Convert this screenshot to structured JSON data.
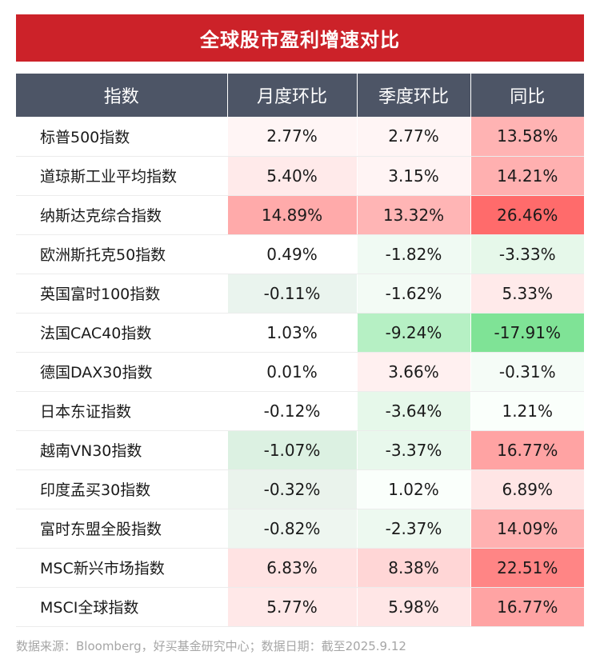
{
  "title": "全球股市盈利增速对比",
  "columns": [
    "指数",
    "月度环比",
    "季度环比",
    "同比"
  ],
  "rows": [
    {
      "name": "标普500指数",
      "cells": [
        {
          "v": "2.77%",
          "bg": "#fff5f5"
        },
        {
          "v": "2.77%",
          "bg": "#fff5f5"
        },
        {
          "v": "13.58%",
          "bg": "#ffb3b3"
        }
      ]
    },
    {
      "name": "道琼斯工业平均指数",
      "cells": [
        {
          "v": "5.40%",
          "bg": "#ffeaea"
        },
        {
          "v": "3.15%",
          "bg": "#fff4f4"
        },
        {
          "v": "14.21%",
          "bg": "#ffb0b0"
        }
      ]
    },
    {
      "name": "纳斯达克综合指数",
      "cells": [
        {
          "v": "14.89%",
          "bg": "#ffaaaa"
        },
        {
          "v": "13.32%",
          "bg": "#ffb5b5"
        },
        {
          "v": "26.46%",
          "bg": "#ff6b6b"
        }
      ]
    },
    {
      "name": "欧洲斯托克50指数",
      "cells": [
        {
          "v": "0.49%",
          "bg": "#ffffff"
        },
        {
          "v": "-1.82%",
          "bg": "#f0faf3"
        },
        {
          "v": "-3.33%",
          "bg": "#e6f8ea"
        }
      ]
    },
    {
      "name": "英国富时100指数",
      "cells": [
        {
          "v": "-0.11%",
          "bg": "#eaf4ee"
        },
        {
          "v": "-1.62%",
          "bg": "#f3fbf5"
        },
        {
          "v": "5.33%",
          "bg": "#ffeaea"
        }
      ]
    },
    {
      "name": "法国CAC40指数",
      "cells": [
        {
          "v": "1.03%",
          "bg": "#ffffff"
        },
        {
          "v": "-9.24%",
          "bg": "#b6f0c4"
        },
        {
          "v": "-17.91%",
          "bg": "#7fe396"
        }
      ]
    },
    {
      "name": "德国DAX30指数",
      "cells": [
        {
          "v": "0.01%",
          "bg": "#ffffff"
        },
        {
          "v": "3.66%",
          "bg": "#fff0f0"
        },
        {
          "v": "-0.31%",
          "bg": "#f5fcf7"
        }
      ]
    },
    {
      "name": "日本东证指数",
      "cells": [
        {
          "v": "-0.12%",
          "bg": "#ffffff"
        },
        {
          "v": "-3.64%",
          "bg": "#e6f8ea"
        },
        {
          "v": "1.21%",
          "bg": "#fafffb"
        }
      ]
    },
    {
      "name": "越南VN30指数",
      "cells": [
        {
          "v": "-1.07%",
          "bg": "#dcf1e2"
        },
        {
          "v": "-3.37%",
          "bg": "#e8f8ec"
        },
        {
          "v": "16.77%",
          "bg": "#ffa3a3"
        }
      ]
    },
    {
      "name": "印度孟买30指数",
      "cells": [
        {
          "v": "-0.32%",
          "bg": "#eaf3ec"
        },
        {
          "v": "1.02%",
          "bg": "#fafffb"
        },
        {
          "v": "6.89%",
          "bg": "#ffe5e5"
        }
      ]
    },
    {
      "name": "富时东盟全股指数",
      "cells": [
        {
          "v": "-0.82%",
          "bg": "#eef6f0"
        },
        {
          "v": "-2.37%",
          "bg": "#edf9f0"
        },
        {
          "v": "14.09%",
          "bg": "#ffb1b1"
        }
      ]
    },
    {
      "name": "MSC新兴市场指数",
      "cells": [
        {
          "v": "6.83%",
          "bg": "#ffe3e3"
        },
        {
          "v": "8.38%",
          "bg": "#ffd6d6"
        },
        {
          "v": "22.51%",
          "bg": "#ff8585"
        }
      ]
    },
    {
      "name": "MSCI全球指数",
      "cells": [
        {
          "v": "5.77%",
          "bg": "#ffe8e8"
        },
        {
          "v": "5.98%",
          "bg": "#ffe6e6"
        },
        {
          "v": "16.77%",
          "bg": "#ffa3a3"
        }
      ]
    }
  ],
  "footer": "数据来源：Bloomberg，好买基金研究中心；数据日期：截至2025.9.12"
}
